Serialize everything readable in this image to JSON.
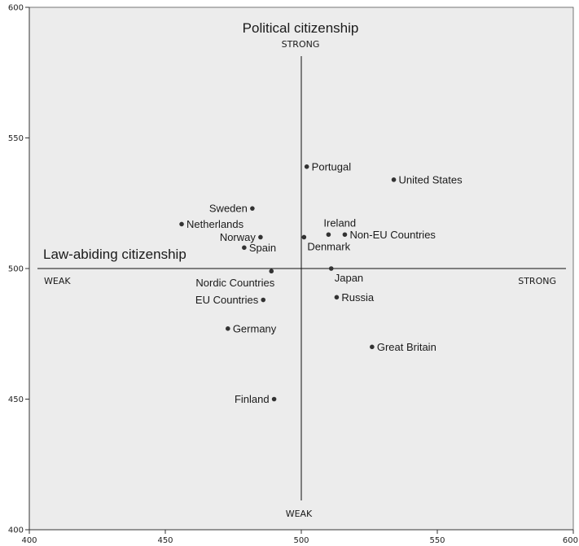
{
  "chart_data": {
    "type": "scatter",
    "title": "",
    "xlabel": "",
    "ylabel": "",
    "xlim": [
      400,
      600
    ],
    "ylim": [
      400,
      600
    ],
    "x_ticks": [
      400,
      450,
      500,
      550,
      600
    ],
    "y_ticks": [
      400,
      450,
      500,
      550,
      600
    ],
    "grid": false,
    "background_color": "#ececec",
    "point_color": "#333333",
    "axis_annotations": {
      "vertical_title": "Political citizenship",
      "vertical_strong": "STRONG",
      "vertical_weak": "WEAK",
      "horizontal_title": "Law-abiding citizenship",
      "horizontal_weak": "WEAK",
      "horizontal_strong": "STRONG"
    },
    "points": [
      {
        "label": "Portugal",
        "x": 502,
        "y": 539,
        "label_pos": "right"
      },
      {
        "label": "United States",
        "x": 534,
        "y": 534,
        "label_pos": "right"
      },
      {
        "label": "Sweden",
        "x": 482,
        "y": 523,
        "label_pos": "left"
      },
      {
        "label": "Netherlands",
        "x": 456,
        "y": 517,
        "label_pos": "right"
      },
      {
        "label": "Ireland",
        "x": 510,
        "y": 513,
        "label_pos": "above"
      },
      {
        "label": "Non-EU Countries",
        "x": 516,
        "y": 513,
        "label_pos": "right"
      },
      {
        "label": "Norway",
        "x": 485,
        "y": 512,
        "label_pos": "left"
      },
      {
        "label": "Denmark",
        "x": 501,
        "y": 512,
        "label_pos": "below-right"
      },
      {
        "label": "Spain",
        "x": 479,
        "y": 508,
        "label_pos": "right"
      },
      {
        "label": "Nordic Countries",
        "x": 489,
        "y": 499,
        "label_pos": "below-left"
      },
      {
        "label": "Japan",
        "x": 511,
        "y": 500,
        "label_pos": "below-right"
      },
      {
        "label": "EU Countries",
        "x": 486,
        "y": 488,
        "label_pos": "left"
      },
      {
        "label": "Russia",
        "x": 513,
        "y": 489,
        "label_pos": "right"
      },
      {
        "label": "Germany",
        "x": 473,
        "y": 477,
        "label_pos": "right"
      },
      {
        "label": "Great Britain",
        "x": 526,
        "y": 470,
        "label_pos": "right"
      },
      {
        "label": "Finland",
        "x": 490,
        "y": 450,
        "label_pos": "left"
      }
    ]
  }
}
